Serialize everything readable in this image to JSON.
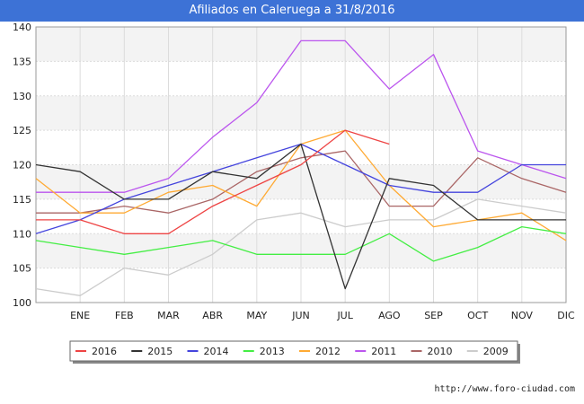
{
  "chart_data": {
    "type": "line",
    "title": "Afiliados en Caleruega a 31/8/2016",
    "categories": [
      "",
      "ENE",
      "FEB",
      "MAR",
      "ABR",
      "MAY",
      "JUN",
      "JUL",
      "AGO",
      "SEP",
      "OCT",
      "NOV",
      "DIC"
    ],
    "ylim": [
      100,
      140
    ],
    "yticks": [
      100,
      105,
      110,
      115,
      120,
      125,
      130,
      135,
      140
    ],
    "grid": true,
    "legend_position": "bottom",
    "series": [
      {
        "name": "2016",
        "color": "#ee4444",
        "values": [
          112,
          112,
          110,
          110,
          114,
          117,
          120,
          125,
          123,
          null,
          null,
          null,
          null
        ]
      },
      {
        "name": "2015",
        "color": "#333333",
        "values": [
          120,
          119,
          115,
          115,
          119,
          118,
          123,
          102,
          118,
          117,
          112,
          112,
          112
        ]
      },
      {
        "name": "2014",
        "color": "#4444dd",
        "values": [
          110,
          112,
          115,
          117,
          119,
          121,
          123,
          120,
          117,
          116,
          116,
          120,
          120
        ]
      },
      {
        "name": "2013",
        "color": "#44ee44",
        "values": [
          109,
          108,
          107,
          108,
          109,
          107,
          107,
          107,
          110,
          106,
          108,
          111,
          110
        ]
      },
      {
        "name": "2012",
        "color": "#ffaa33",
        "values": [
          118,
          113,
          113,
          116,
          117,
          114,
          123,
          125,
          117,
          111,
          112,
          113,
          109
        ]
      },
      {
        "name": "2011",
        "color": "#bb55ee",
        "values": [
          116,
          116,
          116,
          118,
          124,
          129,
          138,
          138,
          131,
          136,
          122,
          120,
          118
        ]
      },
      {
        "name": "2010",
        "color": "#aa6666",
        "values": [
          113,
          113,
          114,
          113,
          115,
          119,
          121,
          122,
          114,
          114,
          121,
          118,
          116
        ]
      },
      {
        "name": "2009",
        "color": "#cccccc",
        "values": [
          102,
          101,
          105,
          104,
          107,
          112,
          113,
          111,
          112,
          112,
          115,
          114,
          113
        ]
      }
    ]
  },
  "footer": {
    "url": "http://www.foro-ciudad.com"
  }
}
